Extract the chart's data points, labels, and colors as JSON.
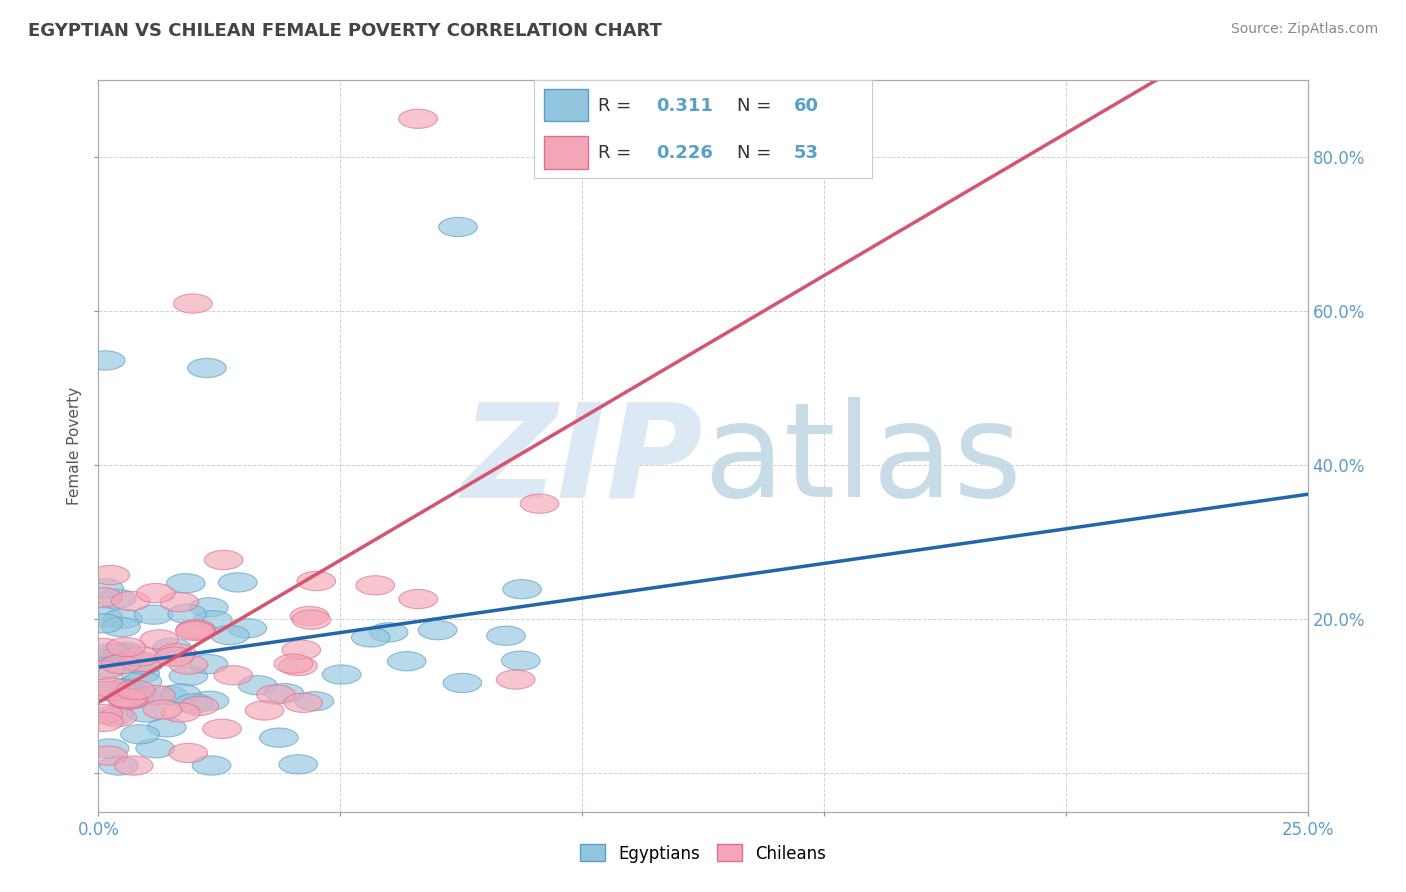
{
  "title": "EGYPTIAN VS CHILEAN FEMALE POVERTY CORRELATION CHART",
  "source": "Source: ZipAtlas.com",
  "ylabel": "Female Poverty",
  "xlim": [
    0.0,
    0.25
  ],
  "ylim": [
    -0.05,
    0.9
  ],
  "xticks": [
    0.0,
    0.05,
    0.1,
    0.15,
    0.2,
    0.25
  ],
  "yticks": [
    0.0,
    0.2,
    0.4,
    0.6,
    0.8
  ],
  "xticklabels": [
    "0.0%",
    "",
    "",
    "",
    "",
    "25.0%"
  ],
  "yticklabels_right": [
    "",
    "20.0%",
    "40.0%",
    "60.0%",
    "80.0%"
  ],
  "blue_color": "#92c5de",
  "pink_color": "#f4a6b8",
  "blue_edge": "#5b9fc8",
  "pink_edge": "#d97090",
  "blue_line_color": "#2166ac",
  "pink_line_color": "#d6546e",
  "legend_blue_R": "0.311",
  "legend_blue_N": "60",
  "legend_pink_R": "0.226",
  "legend_pink_N": "53",
  "watermark_color": "#dce9f5",
  "title_color": "#444444",
  "source_color": "#888888",
  "tick_color": "#5b9fc8",
  "grid_color": "#cccccc",
  "spine_color": "#aaaaaa"
}
